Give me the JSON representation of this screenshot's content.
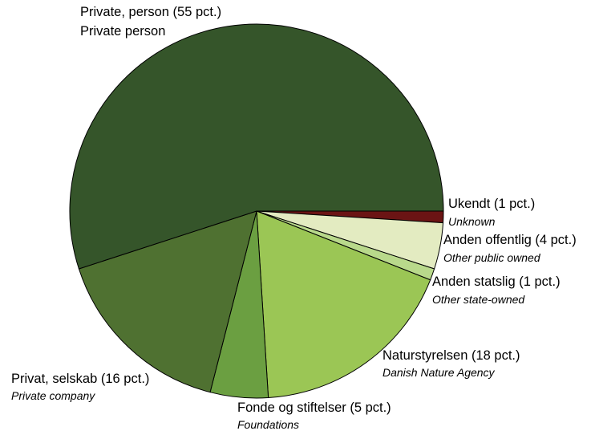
{
  "chart_data": {
    "type": "pie",
    "values": [
      1,
      4,
      1,
      18,
      5,
      16,
      55
    ],
    "value_labels": [
      "Ukendt (1 pct.)",
      "Anden offentlig (4 pct.)",
      "Anden statslig (1 pct.)",
      "Naturstyrelsen (18 pct.)",
      "Fonde og stiftelser (5 pct.)",
      "Privat, selskab (16 pct.)",
      "Private, person (55 pct.)"
    ],
    "categories": [
      "Unknown",
      "Other public owned",
      "Other state-owned",
      "Danish Nature Agency",
      "Foundations",
      "Private company",
      "Private person"
    ],
    "colors": [
      "#6b1414",
      "#e3ebc1",
      "#b9d98b",
      "#9bc655",
      "#6b9f41",
      "#4f7131",
      "#35552a"
    ]
  }
}
